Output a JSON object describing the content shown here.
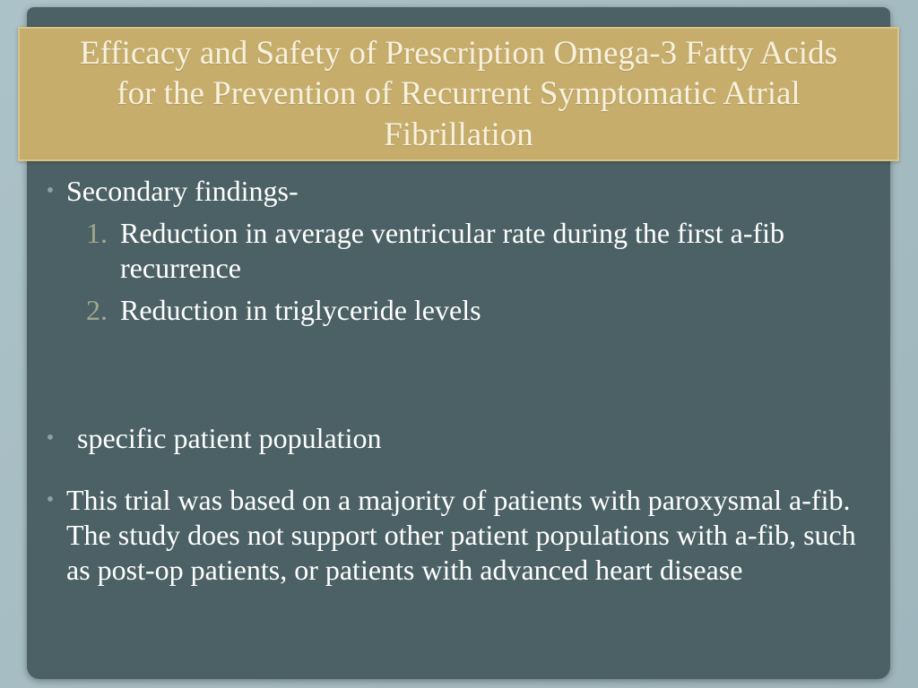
{
  "slide": {
    "title": "Efficacy and Safety of Prescription Omega-3 Fatty Acids for the Prevention of Recurrent Symptomatic Atrial Fibrillation",
    "body": {
      "bullet_marker": "•",
      "bullet1": "Secondary findings-",
      "numbered": [
        {
          "label": "1.",
          "text": "Reduction in average ventricular rate during the first a-fib recurrence"
        },
        {
          "label": "2.",
          "text": "Reduction in triglyceride levels"
        }
      ],
      "bullet2": "specific patient population",
      "bullet3": "This trial was based on a majority of patients with paroxysmal a-fib. The study does not support other patient populations with a-fib, such as post-op patients, or patients with advanced heart disease"
    },
    "colors": {
      "page_background": "#a7bec4",
      "slide_background": "#4b6165",
      "title_background": "#c6ad6c",
      "title_border": "#d9c488",
      "title_text": "#f7f1dc",
      "body_text": "#ffffff",
      "number_text": "#a2a78f",
      "bullet_marker_color": "#8da2a6"
    }
  }
}
